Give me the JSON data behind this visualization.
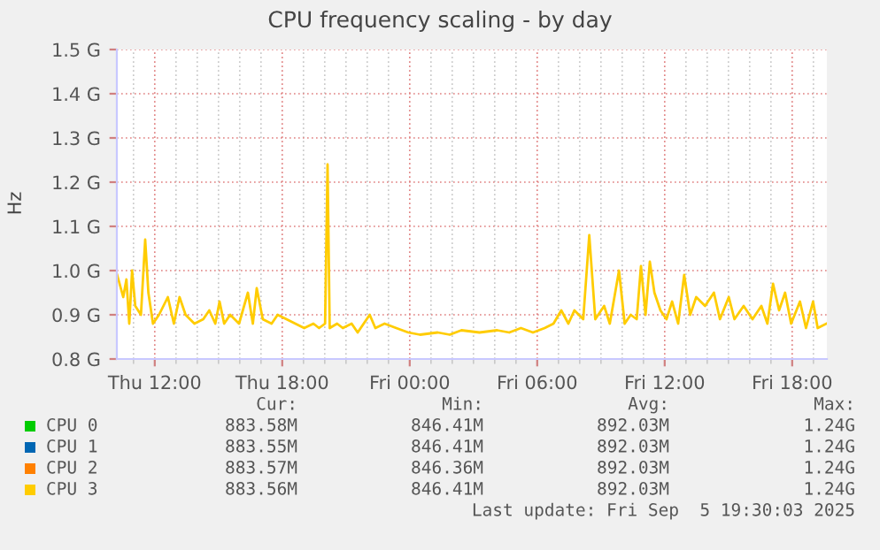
{
  "chart_data": {
    "type": "line",
    "title": "CPU frequency scaling - by day",
    "ylabel": "Hz",
    "x": [
      "2025-09-04T10:14",
      "2025-09-04T10:31",
      "2025-09-04T10:40",
      "2025-09-04T10:48",
      "2025-09-04T10:56",
      "2025-09-04T11:05",
      "2025-09-04T11:21",
      "2025-09-04T11:33",
      "2025-09-04T11:42",
      "2025-09-04T11:55",
      "2025-09-04T12:12",
      "2025-09-04T12:37",
      "2025-09-04T12:54",
      "2025-09-04T13:10",
      "2025-09-04T13:27",
      "2025-09-04T13:52",
      "2025-09-04T14:17",
      "2025-09-04T14:34",
      "2025-09-04T14:51",
      "2025-09-04T15:03",
      "2025-09-04T15:16",
      "2025-09-04T15:33",
      "2025-09-04T15:58",
      "2025-09-04T16:23",
      "2025-09-04T16:37",
      "2025-09-04T16:48",
      "2025-09-04T17:05",
      "2025-09-04T17:30",
      "2025-09-04T17:47",
      "2025-09-04T18:12",
      "2025-09-04T18:37",
      "2025-09-04T19:02",
      "2025-09-04T19:28",
      "2025-09-04T19:44",
      "2025-09-04T20:01",
      "2025-09-04T20:08",
      "2025-09-04T20:14",
      "2025-09-04T20:35",
      "2025-09-04T20:51",
      "2025-09-04T21:16",
      "2025-09-04T21:33",
      "2025-09-04T22:07",
      "2025-09-04T22:23",
      "2025-09-04T22:49",
      "2025-09-04T23:22",
      "2025-09-04T23:56",
      "2025-09-05T00:29",
      "2025-09-05T01:19",
      "2025-09-05T01:53",
      "2025-09-05T02:26",
      "2025-09-05T03:17",
      "2025-09-05T04:07",
      "2025-09-05T04:41",
      "2025-09-05T05:14",
      "2025-09-05T05:48",
      "2025-09-05T06:21",
      "2025-09-05T06:46",
      "2025-09-05T07:08",
      "2025-09-05T07:28",
      "2025-09-05T07:45",
      "2025-09-05T08:10",
      "2025-09-05T08:27",
      "2025-09-05T08:44",
      "2025-09-05T09:09",
      "2025-09-05T09:25",
      "2025-09-05T09:51",
      "2025-09-05T10:07",
      "2025-09-05T10:24",
      "2025-09-05T10:41",
      "2025-09-05T10:53",
      "2025-09-05T11:06",
      "2025-09-05T11:18",
      "2025-09-05T11:31",
      "2025-09-05T11:48",
      "2025-09-05T12:05",
      "2025-09-05T12:21",
      "2025-09-05T12:38",
      "2025-09-05T12:55",
      "2025-09-05T13:12",
      "2025-09-05T13:29",
      "2025-09-05T13:54",
      "2025-09-05T14:19",
      "2025-09-05T14:36",
      "2025-09-05T15:01",
      "2025-09-05T15:17",
      "2025-09-05T15:43",
      "2025-09-05T16:08",
      "2025-09-05T16:33",
      "2025-09-05T16:50",
      "2025-09-05T17:06",
      "2025-09-05T17:23",
      "2025-09-05T17:40",
      "2025-09-05T17:57",
      "2025-09-05T18:22",
      "2025-09-05T18:39",
      "2025-09-05T18:59",
      "2025-09-05T19:12",
      "2025-09-05T19:37"
    ],
    "series": [
      {
        "name": "CPU 0",
        "color": "#00cc00",
        "values": [
          null,
          null,
          null,
          null,
          null,
          null,
          null,
          null,
          null,
          null,
          null,
          null,
          null,
          null,
          null,
          null,
          null,
          null,
          null,
          null,
          null,
          null,
          null,
          null,
          null,
          null,
          null,
          null,
          null,
          null,
          null,
          null,
          null,
          null,
          null,
          null,
          null,
          null,
          null,
          null,
          null,
          null,
          null,
          null,
          null,
          null,
          null,
          null,
          null,
          null,
          null,
          null,
          null,
          null,
          null,
          null,
          null,
          null,
          null,
          null,
          null,
          null,
          null,
          null,
          null,
          null,
          null,
          null,
          null,
          null,
          null,
          null,
          null,
          null,
          null,
          null,
          null,
          null,
          null,
          null,
          null,
          null,
          null,
          null,
          null,
          null,
          null,
          null,
          null,
          null,
          null,
          null,
          null,
          null,
          null,
          null,
          null,
          null
        ]
      },
      {
        "name": "CPU 1",
        "color": "#0066b3",
        "values": [
          null,
          null,
          null,
          null,
          null,
          null,
          null,
          null,
          null,
          null,
          null,
          null,
          null,
          null,
          null,
          null,
          null,
          null,
          null,
          null,
          null,
          null,
          null,
          null,
          null,
          null,
          null,
          null,
          null,
          null,
          null,
          null,
          null,
          null,
          null,
          null,
          null,
          null,
          null,
          null,
          null,
          null,
          null,
          null,
          null,
          null,
          null,
          null,
          null,
          null,
          null,
          null,
          null,
          null,
          null,
          null,
          null,
          null,
          null,
          null,
          null,
          null,
          null,
          null,
          null,
          null,
          null,
          null,
          null,
          null,
          null,
          null,
          null,
          null,
          null,
          null,
          null,
          null,
          null,
          null,
          null,
          null,
          null,
          null,
          null,
          null,
          null,
          null,
          null,
          null,
          null,
          null,
          null,
          null,
          null,
          null,
          null,
          null
        ]
      },
      {
        "name": "CPU 2",
        "color": "#ff8000",
        "values": [
          null,
          null,
          null,
          null,
          null,
          null,
          null,
          null,
          null,
          null,
          null,
          null,
          null,
          null,
          null,
          null,
          null,
          null,
          null,
          null,
          null,
          null,
          null,
          null,
          null,
          null,
          null,
          null,
          null,
          null,
          null,
          null,
          null,
          null,
          null,
          null,
          null,
          null,
          null,
          null,
          null,
          null,
          null,
          null,
          null,
          null,
          null,
          null,
          null,
          null,
          null,
          null,
          null,
          null,
          null,
          null,
          null,
          null,
          null,
          null,
          null,
          null,
          null,
          null,
          null,
          null,
          null,
          null,
          null,
          null,
          null,
          null,
          null,
          null,
          null,
          null,
          null,
          null,
          null,
          null,
          null,
          null,
          null,
          null,
          null,
          null,
          null,
          null,
          null,
          null,
          null,
          null,
          null,
          null,
          null,
          null,
          null,
          null
        ]
      },
      {
        "name": "CPU 3",
        "color": "#ffcc00",
        "values": [
          0.99,
          0.94,
          0.98,
          0.88,
          1.0,
          0.92,
          0.9,
          1.07,
          0.95,
          0.88,
          0.9,
          0.94,
          0.88,
          0.94,
          0.9,
          0.88,
          0.89,
          0.91,
          0.88,
          0.93,
          0.88,
          0.9,
          0.88,
          0.95,
          0.88,
          0.96,
          0.89,
          0.88,
          0.9,
          0.89,
          0.88,
          0.87,
          0.88,
          0.87,
          0.88,
          1.24,
          0.87,
          0.88,
          0.87,
          0.88,
          0.86,
          0.9,
          0.87,
          0.88,
          0.87,
          0.86,
          0.855,
          0.86,
          0.855,
          0.865,
          0.86,
          0.865,
          0.86,
          0.87,
          0.86,
          0.87,
          0.88,
          0.91,
          0.88,
          0.91,
          0.89,
          1.08,
          0.89,
          0.92,
          0.88,
          1.0,
          0.88,
          0.9,
          0.89,
          1.01,
          0.9,
          1.02,
          0.95,
          0.91,
          0.89,
          0.93,
          0.88,
          0.99,
          0.9,
          0.94,
          0.92,
          0.95,
          0.89,
          0.94,
          0.89,
          0.92,
          0.89,
          0.92,
          0.88,
          0.97,
          0.91,
          0.95,
          0.88,
          0.93,
          0.87,
          0.93,
          0.87,
          0.88
        ]
      }
    ],
    "xlim": [
      "2025-09-04T10:13",
      "2025-09-05T19:38"
    ],
    "xticks": [
      {
        "value": "2025-09-04T12:00",
        "label": "Thu 12:00"
      },
      {
        "value": "2025-09-04T18:00",
        "label": "Thu 18:00"
      },
      {
        "value": "2025-09-05T00:00",
        "label": "Fri 00:00"
      },
      {
        "value": "2025-09-05T06:00",
        "label": "Fri 06:00"
      },
      {
        "value": "2025-09-05T12:00",
        "label": "Fri 12:00"
      },
      {
        "value": "2025-09-05T18:00",
        "label": "Fri 18:00"
      }
    ],
    "ylim": [
      0.8,
      1.5
    ],
    "yticks": [
      {
        "value": 0.8,
        "label": "0.8 G"
      },
      {
        "value": 0.9,
        "label": "0.9 G"
      },
      {
        "value": 1.0,
        "label": "1.0 G"
      },
      {
        "value": 1.1,
        "label": "1.1 G"
      },
      {
        "value": 1.2,
        "label": "1.2 G"
      },
      {
        "value": 1.3,
        "label": "1.3 G"
      },
      {
        "value": 1.4,
        "label": "1.4 G"
      },
      {
        "value": 1.5,
        "label": "1.5 G"
      }
    ],
    "grid": true,
    "legend": "bottom",
    "annotations": [
      "Cur:",
      "Min:",
      "Avg:",
      "Max:",
      "883.58M",
      "846.41M",
      "892.03M",
      "1.24G",
      "883.55M",
      "846.41M",
      "892.03M",
      "1.24G",
      "883.57M",
      "846.36M",
      "892.03M",
      "1.24G",
      "883.56M",
      "846.41M",
      "892.03M",
      "1.24G",
      "Last update: Fri Sep  5 19:30:03 2025"
    ]
  }
}
